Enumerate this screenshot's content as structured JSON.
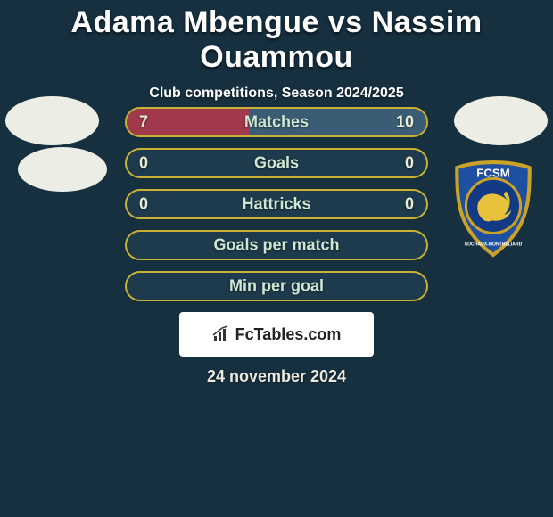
{
  "title": "Adama Mbengue vs Nassim Ouammou",
  "subtitle": "Club competitions, Season 2024/2025",
  "footer_brand": "FcTables.com",
  "footer_date": "24 november 2024",
  "colors": {
    "background": "#163040",
    "bar_bg": "#1e3a4d",
    "bar_outline": "#c9b233",
    "bar_fill_left": "#a0394c",
    "bar_fill_right": "#3a5d75",
    "text": "#ffffff"
  },
  "crest": {
    "outer_fill": "#1f4fa1",
    "outer_stroke": "#c9a227",
    "inner_fill": "#123a85",
    "lion_fill": "#e7c23a",
    "initials": "FCSM",
    "subtext": "SOCHAUX-MONTBÉLIARD"
  },
  "bars": [
    {
      "label": "Matches",
      "left": "7",
      "right": "10",
      "left_pct": 41,
      "right_pct": 59,
      "filled": true
    },
    {
      "label": "Goals",
      "left": "0",
      "right": "0",
      "left_pct": 0,
      "right_pct": 0,
      "filled": false
    },
    {
      "label": "Hattricks",
      "left": "0",
      "right": "0",
      "left_pct": 0,
      "right_pct": 0,
      "filled": false
    },
    {
      "label": "Goals per match",
      "left": "",
      "right": "",
      "left_pct": 0,
      "right_pct": 0,
      "filled": false
    },
    {
      "label": "Min per goal",
      "left": "",
      "right": "",
      "left_pct": 0,
      "right_pct": 0,
      "filled": false
    }
  ]
}
